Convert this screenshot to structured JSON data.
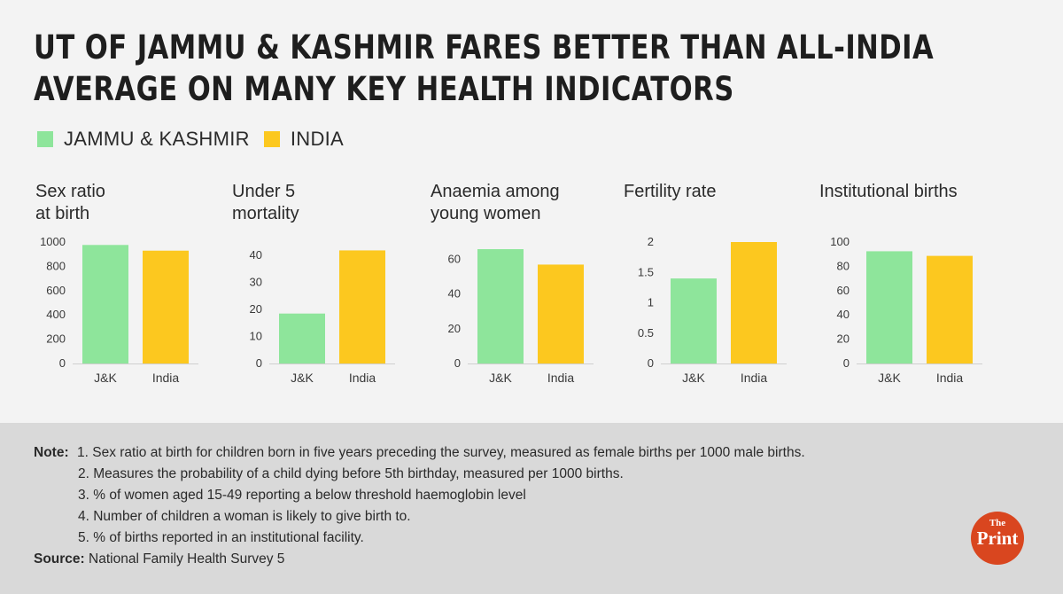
{
  "header": {
    "title": "UT of Jammu & Kashmir fares better than all-India average on many key health indicators"
  },
  "legend": {
    "items": [
      {
        "label": "JAMMU & KASHMIR",
        "color": "#8ee59b"
      },
      {
        "label": "INDIA",
        "color": "#fcc81f"
      }
    ]
  },
  "colors": {
    "jk": "#8ee59b",
    "india": "#fcc81f"
  },
  "chart_data": [
    {
      "type": "bar",
      "title": "Sex ratio\nat birth",
      "categories": [
        "J&K",
        "India"
      ],
      "values": [
        976,
        929
      ],
      "ylim": [
        0,
        1000
      ],
      "yticks": [
        "0",
        "200",
        "400",
        "600",
        "800",
        "1000"
      ],
      "ytick_values": [
        0,
        200,
        400,
        600,
        800,
        1000
      ],
      "grid": false
    },
    {
      "type": "bar",
      "title": "Under 5\nmortality",
      "categories": [
        "J&K",
        "India"
      ],
      "values": [
        18.5,
        41.9
      ],
      "ylim": [
        0,
        45
      ],
      "yticks": [
        "0",
        "10",
        "20",
        "30",
        "40"
      ],
      "ytick_values": [
        0,
        10,
        20,
        30,
        40
      ],
      "grid": false
    },
    {
      "type": "bar",
      "title": "Anaemia among\nyoung women",
      "categories": [
        "J&K",
        "India"
      ],
      "values": [
        65.9,
        57
      ],
      "ylim": [
        0,
        70
      ],
      "yticks": [
        "0",
        "20",
        "40",
        "60"
      ],
      "ytick_values": [
        0,
        20,
        40,
        60
      ],
      "grid": false
    },
    {
      "type": "bar",
      "title": "Fertility rate",
      "categories": [
        "J&K",
        "India"
      ],
      "values": [
        1.4,
        2.0
      ],
      "ylim": [
        0,
        2
      ],
      "yticks": [
        "0",
        "0.5",
        "1",
        "1.5",
        "2"
      ],
      "ytick_values": [
        0,
        0.5,
        1,
        1.5,
        2
      ],
      "grid": false
    },
    {
      "type": "bar",
      "title": "Institutional births",
      "categories": [
        "J&K",
        "India"
      ],
      "values": [
        92.4,
        88.6
      ],
      "ylim": [
        0,
        100
      ],
      "yticks": [
        "0",
        "20",
        "40",
        "60",
        "80",
        "100"
      ],
      "ytick_values": [
        0,
        20,
        40,
        60,
        80,
        100
      ],
      "grid": false
    }
  ],
  "notes": {
    "label": "Note:",
    "lines": [
      "1. Sex ratio at birth for children born in five years preceding the survey, measured as female births per 1000 male births.",
      "2. Measures the probability of a child dying before 5th birthday, measured per 1000 births.",
      "3. % of women aged 15-49 reporting a below threshold haemoglobin level",
      "4. Number of children a woman is likely to give birth to.",
      "5. % of births reported in an institutional facility."
    ],
    "source_label": "Source:",
    "source": "National Family Health Survey 5"
  },
  "logo": {
    "line1": "The",
    "line2": "Print",
    "color": "#d9461f"
  }
}
